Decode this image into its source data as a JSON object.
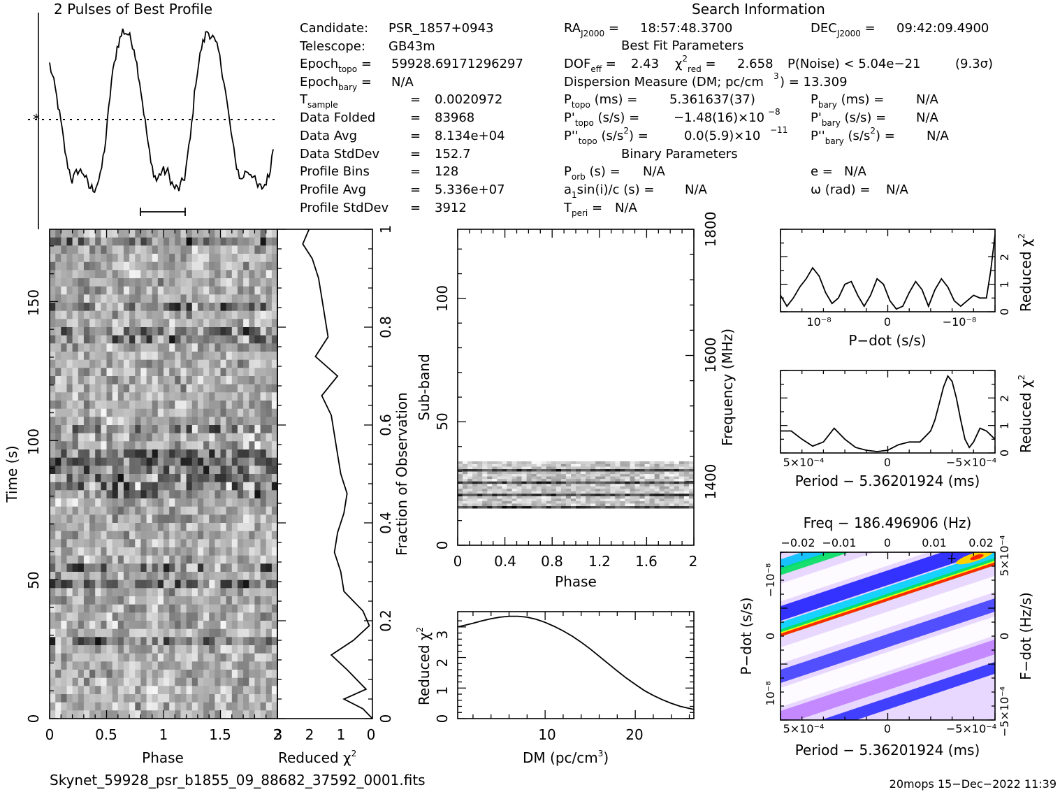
{
  "profile_panel": {
    "title": "2 Pulses of Best Profile"
  },
  "header": {
    "search_title": "Search Information",
    "candidate_label": "Candidate:",
    "candidate": "PSR_1857+0943",
    "telescope_label": "Telescope:",
    "telescope": "GB43m",
    "epoch_topo": "59928.69171296297",
    "epoch_bary": "N/A",
    "tsample": "0.0020972",
    "data_folded_label": "Data Folded",
    "data_folded": "83968",
    "data_avg_label": "Data Avg",
    "data_avg": "8.134e+04",
    "data_stddev_label": "Data StdDev",
    "data_stddev": "152.7",
    "profile_bins_label": "Profile Bins",
    "profile_bins": "128",
    "profile_avg_label": "Profile Avg",
    "profile_avg": "5.336e+07",
    "profile_stddev_label": "Profile StdDev",
    "profile_stddev": "3912",
    "ra": "18:57:48.3700",
    "dec": "09:42:09.4900",
    "best_fit_title": "Best Fit Parameters",
    "dof_eff": "2.43",
    "chi2_red": "2.658",
    "p_noise": "P(Noise) < 5.04e−21",
    "sigma": "(9.3σ)",
    "dm_text": "Dispersion Measure (DM; pc/cm",
    "dm_value": ") = 13.309",
    "p_topo": "5.361637(37)",
    "pd_topo_mantissa": "−1.48(16)×10",
    "pd_topo_exp": "−8",
    "pdd_topo_mantissa": "0.0(5.9)×10",
    "pdd_topo_exp": "−11",
    "p_bary": "N/A",
    "pd_bary": "N/A",
    "pdd_bary": "N/A",
    "binary_title": "Binary Parameters",
    "p_orb": "N/A",
    "a1sini": "N/A",
    "t_peri": "N/A",
    "e": "N/A",
    "omega": "N/A"
  },
  "footer": {
    "filename": "Skynet_59928_psr_b1855_09_88682_37592_0001.fits",
    "stamp": "20mops 15−Dec−2022 11:39"
  },
  "chart_data": [
    {
      "type": "line",
      "panel": "best-profile",
      "title": "2 Pulses of Best Profile",
      "x_range": [
        0,
        2
      ],
      "x": [
        0.0,
        0.05,
        0.1,
        0.15,
        0.2,
        0.25,
        0.3,
        0.35,
        0.4,
        0.45,
        0.5,
        0.55,
        0.6,
        0.65,
        0.7,
        0.75,
        0.8,
        0.85,
        0.9,
        0.95,
        1.0,
        1.05,
        1.1,
        1.15,
        1.2,
        1.25,
        1.3,
        1.35,
        1.4,
        1.45,
        1.5,
        1.55,
        1.6,
        1.65,
        1.7,
        1.75,
        1.8,
        1.85,
        1.9,
        1.95,
        2.0
      ],
      "y": [
        0.8,
        0.65,
        0.45,
        0.22,
        0.1,
        0.16,
        0.15,
        0.06,
        0.05,
        0.12,
        0.35,
        0.7,
        0.9,
        1.0,
        0.98,
        0.9,
        0.7,
        0.45,
        0.2,
        0.1,
        0.16,
        0.15,
        0.06,
        0.05,
        0.12,
        0.35,
        0.7,
        0.9,
        1.0,
        0.96,
        0.88,
        0.7,
        0.45,
        0.22,
        0.1,
        0.16,
        0.14,
        0.06,
        0.06,
        0.13,
        0.35
      ],
      "mean_level": 0.43
    },
    {
      "type": "line",
      "panel": "time-chi2",
      "xlabel": "Reduced χ²",
      "ylabel": "Fraction of Observation",
      "xlim": [
        3,
        0
      ],
      "ylim": [
        0,
        1
      ],
      "y": [
        0.0,
        0.02,
        0.04,
        0.06,
        0.08,
        0.1,
        0.13,
        0.16,
        0.19,
        0.22,
        0.26,
        0.3,
        0.34,
        0.38,
        0.42,
        0.46,
        0.5,
        0.54,
        0.58,
        0.62,
        0.66,
        0.7,
        0.74,
        0.78,
        0.82,
        0.86,
        0.9,
        0.94,
        0.97,
        1.0
      ],
      "x": [
        0.0,
        0.3,
        0.9,
        0.2,
        0.5,
        0.8,
        1.3,
        0.6,
        0.1,
        0.3,
        0.9,
        1.0,
        1.2,
        1.1,
        0.9,
        0.8,
        1.0,
        1.1,
        1.2,
        1.3,
        1.6,
        1.1,
        1.8,
        1.4,
        1.5,
        1.6,
        1.7,
        1.9,
        2.2,
        2.0
      ]
    },
    {
      "type": "heatmap",
      "panel": "time-phase",
      "xlabel": "Phase",
      "ylabel": "Time (s)",
      "x_ticks": [
        "0",
        "0.5",
        "1",
        "1.5",
        "2"
      ],
      "y_ticks": [
        "0",
        "50",
        "100",
        "150"
      ],
      "xlim": [
        0,
        2
      ],
      "ylim": [
        0,
        176
      ]
    },
    {
      "type": "heatmap",
      "panel": "subband-phase",
      "xlabel": "Phase",
      "ylabel": "Sub-band",
      "y2label": "Frequency (MHz)",
      "x_ticks": [
        "0",
        "0.4",
        "0.8",
        "1.2",
        "1.6",
        "2"
      ],
      "y_ticks": [
        "0",
        "50",
        "100"
      ],
      "y2_ticks": [
        "1400",
        "1600",
        "1800"
      ],
      "xlim": [
        0,
        2
      ],
      "ylim": [
        0,
        128
      ],
      "filled_subbands": [
        15,
        34
      ]
    },
    {
      "type": "line",
      "panel": "dm-chi2",
      "xlabel": "DM (pc/cm³)",
      "ylabel": "Reduced χ²",
      "x_ticks": [
        "10",
        "20"
      ],
      "y_ticks": [
        "0",
        "1",
        "2",
        "3"
      ],
      "xlim": [
        0.3,
        26.5
      ],
      "ylim": [
        0,
        3.5
      ],
      "x": [
        0.3,
        1,
        2,
        3,
        4,
        5,
        6,
        7,
        8,
        9,
        10,
        11,
        12,
        13,
        14,
        15,
        16,
        17,
        18,
        19,
        20,
        21,
        22,
        23,
        24,
        25,
        26.5
      ],
      "y": [
        3.0,
        3.05,
        3.12,
        3.2,
        3.27,
        3.32,
        3.35,
        3.35,
        3.32,
        3.25,
        3.15,
        3.02,
        2.87,
        2.7,
        2.5,
        2.28,
        2.04,
        1.8,
        1.56,
        1.33,
        1.12,
        0.92,
        0.76,
        0.62,
        0.5,
        0.4,
        0.3
      ]
    },
    {
      "type": "line",
      "panel": "pdot-chi2",
      "xlabel": "P−dot (s/s)",
      "ylabel": "Reduced χ²",
      "x_ticks": [
        "10⁻⁸",
        "0",
        "−10⁻⁸"
      ],
      "y_ticks": [
        "0",
        "1",
        "2"
      ],
      "xlim": [
        0,
        1
      ],
      "ylim": [
        0,
        3
      ],
      "x": [
        0,
        0.03,
        0.06,
        0.09,
        0.12,
        0.15,
        0.18,
        0.21,
        0.24,
        0.27,
        0.3,
        0.33,
        0.36,
        0.39,
        0.42,
        0.45,
        0.48,
        0.51,
        0.54,
        0.57,
        0.6,
        0.63,
        0.66,
        0.69,
        0.72,
        0.75,
        0.78,
        0.81,
        0.84,
        0.87,
        0.9,
        0.93,
        0.96,
        0.98,
        1.0
      ],
      "y": [
        0.6,
        0.2,
        0.5,
        0.9,
        1.2,
        1.6,
        1.3,
        0.7,
        0.3,
        0.5,
        1.0,
        1.1,
        0.6,
        0.2,
        0.6,
        1.2,
        1.0,
        0.4,
        0.1,
        0.2,
        0.7,
        1.1,
        0.8,
        0.2,
        0.8,
        1.2,
        0.9,
        0.4,
        0.2,
        0.4,
        0.6,
        0.5,
        0.5,
        1.5,
        2.8
      ]
    },
    {
      "type": "line",
      "panel": "period-chi2",
      "xlabel": "Period − 5.36201924 (ms)",
      "ylabel": "Reduced χ²",
      "x_ticks": [
        "5×10⁻⁴",
        "0",
        "−5×10⁻⁴"
      ],
      "y_ticks": [
        "0",
        "1",
        "2"
      ],
      "xlim": [
        0,
        1
      ],
      "ylim": [
        0,
        3
      ],
      "x": [
        0,
        0.05,
        0.1,
        0.15,
        0.2,
        0.25,
        0.3,
        0.35,
        0.4,
        0.45,
        0.5,
        0.55,
        0.6,
        0.65,
        0.7,
        0.72,
        0.74,
        0.76,
        0.78,
        0.8,
        0.82,
        0.84,
        0.86,
        0.88,
        0.9,
        0.93,
        0.96,
        1.0
      ],
      "y": [
        0.8,
        0.8,
        0.5,
        0.25,
        0.4,
        0.9,
        0.5,
        0.2,
        0.1,
        0.05,
        0.1,
        0.3,
        0.4,
        0.4,
        0.8,
        1.2,
        1.8,
        2.4,
        2.8,
        2.6,
        2.0,
        1.2,
        0.5,
        0.2,
        0.4,
        0.9,
        0.8,
        0.5
      ]
    },
    {
      "type": "heatmap",
      "panel": "period-pdot",
      "title": "Freq − 186.496906 (Hz)",
      "xlabel": "Period − 5.36201924 (ms)",
      "ylabel": "P−dot (s/s)",
      "y2label": "F−dot (Hz/s)",
      "x_ticks": [
        "5×10⁻⁴",
        "0",
        "−5×10⁻⁴"
      ],
      "x2_ticks": [
        "−0.02",
        "−0.01",
        "0",
        "0.01",
        "0.02"
      ],
      "y_ticks": [
        "−10⁻⁸",
        "0",
        "10⁻⁸"
      ],
      "y2_ticks": [
        "5×10⁻⁴",
        "0",
        "−5×10⁻⁴"
      ]
    }
  ]
}
